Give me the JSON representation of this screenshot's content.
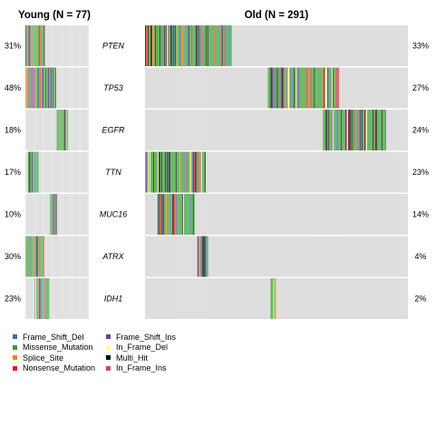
{
  "chart_data": {
    "type": "heatmap",
    "panels": [
      {
        "title": "Young (N = 77)",
        "n": 77
      },
      {
        "title": "Old (N = 291)",
        "n": 291
      }
    ],
    "genes": [
      "PTEN",
      "TP53",
      "EGFR",
      "TTN",
      "MUC16",
      "ATRX",
      "IDH1"
    ],
    "young_percent": [
      "31%",
      "48%",
      "18%",
      "17%",
      "10%",
      "30%",
      "23%"
    ],
    "old_percent": [
      "33%",
      "27%",
      "24%",
      "23%",
      "14%",
      "4%",
      "2%"
    ],
    "legend": [
      {
        "label": "Frame_Shift_Del",
        "color": "#3a6fa8"
      },
      {
        "label": "Frame_Shift_Ins",
        "color": "#6a3d9a"
      },
      {
        "label": "Missense_Mutation",
        "color": "#33a02c"
      },
      {
        "label": "In_Frame_Del",
        "color": "#ffff99"
      },
      {
        "label": "Splice_Site",
        "color": "#ff7f00"
      },
      {
        "label": "Multi_Hit",
        "color": "#000000"
      },
      {
        "label": "Nonsense_Mutation",
        "color": "#e31a1c"
      },
      {
        "label": "In_Frame_Ins",
        "color": "#c74b5a"
      }
    ],
    "background_color": "#d4d4d4"
  }
}
